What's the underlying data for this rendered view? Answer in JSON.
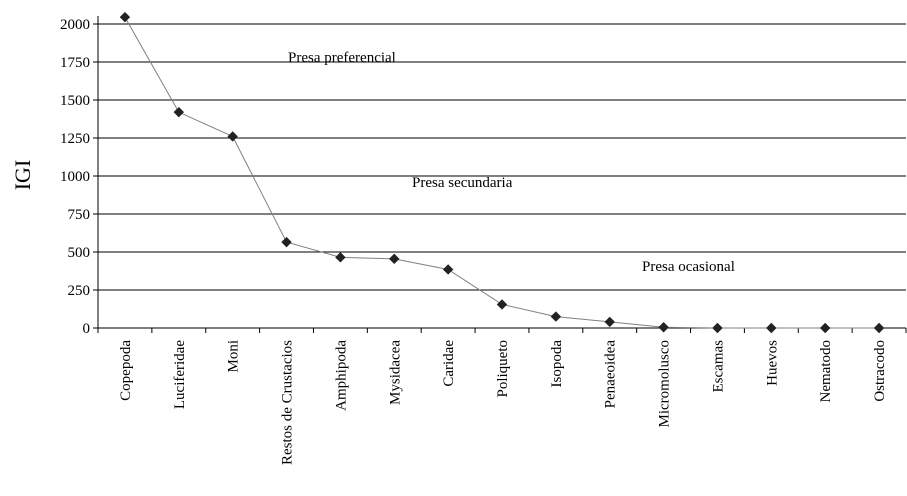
{
  "chart_data": {
    "type": "line",
    "title": "",
    "xlabel": "",
    "ylabel": "IGI",
    "categories": [
      "Copepoda",
      "Luciferidae",
      "Moni",
      "Restos de Crustacios",
      "Amphipoda",
      "Mysidacea",
      "Caridae",
      "Poliqueto",
      "Isopoda",
      "Penaeoidea",
      "Micromolusco",
      "Escamas",
      "Huevos",
      "Nematodo",
      "Ostracodo"
    ],
    "values": [
      2045,
      1420,
      1260,
      565,
      465,
      455,
      385,
      155,
      75,
      40,
      5,
      0,
      0,
      0,
      0
    ],
    "ylim": [
      0,
      2000
    ],
    "yticks": [
      0,
      250,
      500,
      750,
      1000,
      1250,
      1500,
      1750,
      2000
    ],
    "ytick_labels": [
      "0",
      "250",
      "500",
      "750",
      "1000",
      "1250",
      "1500",
      "1750",
      "2000"
    ],
    "grid": "horizontal",
    "annotations": [
      "Presa preferencial",
      "Presa secundaria",
      "Presa ocasional"
    ],
    "line_color": "#808080",
    "marker_color": "#222222"
  }
}
